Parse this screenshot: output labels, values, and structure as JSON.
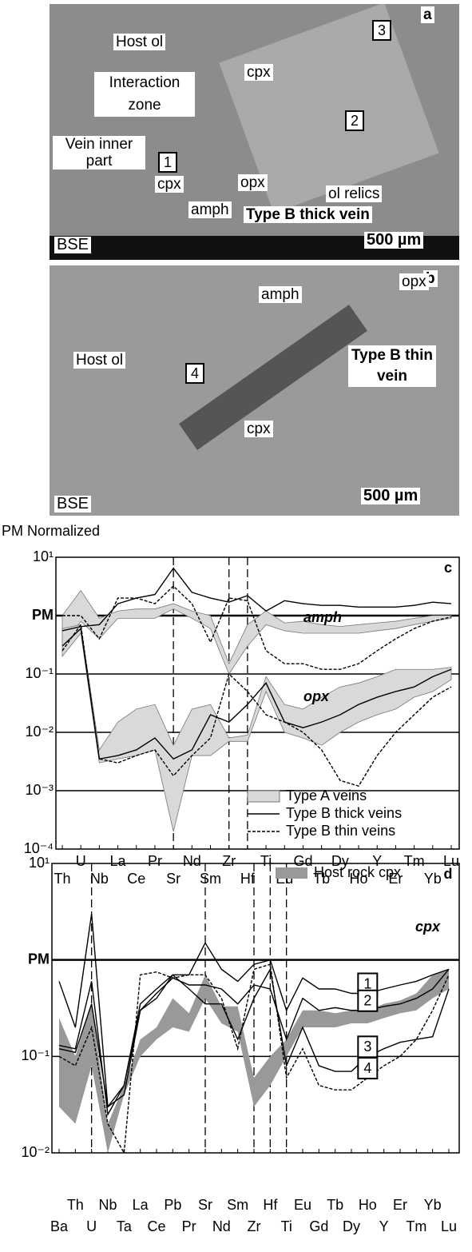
{
  "panel_a": {
    "letter": "a",
    "host": "Host ol",
    "zone": "Interaction zone",
    "cpx_top": "cpx",
    "vein_inner": "Vein inner part",
    "opx": "opx",
    "relics": "ol relics",
    "cpx_bottom": "cpx",
    "amph": "amph",
    "vein": "Type B thick vein",
    "bse": "BSE",
    "scale": "500 µm",
    "spots": [
      "1",
      "2",
      "3"
    ]
  },
  "panel_b": {
    "letter": "b",
    "amph": "amph",
    "opx": "opx",
    "host": "Host ol",
    "vein": "Type B thin vein",
    "spot": "4",
    "cpx": "cpx",
    "bse": "BSE",
    "scale": "500 µm"
  },
  "chart_data": [
    {
      "type": "line",
      "letter": "c",
      "ylabel": "PM Normalized",
      "log": true,
      "ylim": [
        0.0001,
        10
      ],
      "yticks": [
        {
          "value": 0.0001,
          "label": "10⁻⁴"
        },
        {
          "value": 0.001,
          "label": "10⁻³"
        },
        {
          "value": 0.01,
          "label": "10⁻²"
        },
        {
          "value": 0.1,
          "label": "10⁻¹"
        },
        {
          "value": 1,
          "label": "PM"
        },
        {
          "value": 10,
          "label": "10¹"
        }
      ],
      "categories": [
        "Th",
        "U",
        "Nb",
        "La",
        "Ce",
        "Pr",
        "Sr",
        "Nd",
        "Sm",
        "Zr",
        "Hf",
        "Ti",
        "Eu",
        "Gd",
        "Tb",
        "Dy",
        "Ho",
        "Y",
        "Er",
        "Tm",
        "Yb",
        "Lu"
      ],
      "vlines": [
        6,
        9,
        10
      ],
      "legend": "lower right",
      "annotations": [
        "amph",
        "opx"
      ],
      "series": [
        {
          "name": "Type A veins",
          "color": "#d9d9d9",
          "style": "band",
          "ranges": [
            {
              "low": [
                0.3,
                0.8,
                0.4,
                0.9,
                0.9,
                0.9,
                1.3,
                0.9,
                0.6,
                0.1,
                0.3,
                0.7,
                0.55,
                0.5,
                0.5,
                0.5,
                0.5,
                0.55,
                0.6,
                0.7,
                0.8,
                0.9
              ],
              "high": [
                1.0,
                2.7,
                0.9,
                1.2,
                1.3,
                1.3,
                1.6,
                1.2,
                1.0,
                0.15,
                0.7,
                1.2,
                0.75,
                0.8,
                0.7,
                0.65,
                0.7,
                0.75,
                0.8,
                0.9,
                1.0,
                1.0
              ]
            },
            {
              "low": [
                0.2,
                0.5,
                0.003,
                0.0035,
                0.004,
                0.005,
                0.0002,
                0.004,
                0.004,
                0.007,
                0.007,
                0.05,
                0.01,
                0.008,
                0.006,
                0.01,
                0.015,
                0.02,
                0.025,
                0.04,
                0.05,
                0.08
              ],
              "high": [
                0.6,
                0.7,
                0.005,
                0.015,
                0.025,
                0.03,
                0.006,
                0.025,
                0.03,
                0.008,
                0.009,
                0.09,
                0.03,
                0.025,
                0.04,
                0.06,
                0.07,
                0.09,
                0.12,
                0.12,
                0.12,
                0.13
              ]
            }
          ]
        },
        {
          "name": "Type B thick veins",
          "color": "#000",
          "style": "solid",
          "lines": [
            [
              0.55,
              0.65,
              0.7,
              1.6,
              2.0,
              2.3,
              6.5,
              2.5,
              2.0,
              1.7,
              2.2,
              1.2,
              1.8,
              1.6,
              1.5,
              1.5,
              1.4,
              1.4,
              1.4,
              1.5,
              1.7,
              1.6
            ],
            [
              0.3,
              0.6,
              0.0035,
              0.004,
              0.005,
              0.008,
              0.0035,
              0.005,
              0.02,
              0.015,
              0.03,
              0.07,
              0.015,
              0.012,
              0.015,
              0.02,
              0.03,
              0.04,
              0.05,
              0.06,
              0.09,
              0.12
            ]
          ]
        },
        {
          "name": "Type B thin veins",
          "color": "#000",
          "style": "dashed",
          "lines": [
            [
              1.0,
              1.0,
              0.4,
              2.0,
              2.0,
              1.6,
              3.2,
              1.6,
              0.35,
              2.0,
              1.8,
              0.25,
              0.15,
              0.15,
              0.12,
              0.12,
              0.15,
              0.25,
              0.4,
              0.6,
              0.8,
              0.95
            ],
            [
              0.25,
              0.7,
              0.0035,
              0.003,
              0.004,
              0.005,
              0.0018,
              0.004,
              0.008,
              0.1,
              0.05,
              0.02,
              0.015,
              0.01,
              0.005,
              0.0015,
              0.0012,
              0.004,
              0.01,
              0.02,
              0.04,
              0.06
            ]
          ]
        }
      ]
    },
    {
      "type": "line",
      "letter": "d",
      "log": true,
      "ylim": [
        0.01,
        10
      ],
      "yticks": [
        {
          "value": 0.01,
          "label": "10⁻²"
        },
        {
          "value": 0.1,
          "label": "10⁻¹"
        },
        {
          "value": 1,
          "label": "PM"
        },
        {
          "value": 10,
          "label": "10¹"
        }
      ],
      "categories": [
        "Ba",
        "Th",
        "U",
        "Nb",
        "Ta",
        "La",
        "Ce",
        "Pb",
        "Pr",
        "Sr",
        "Nd",
        "Sm",
        "Zr",
        "Hf",
        "Ti",
        "Eu",
        "Gd",
        "Tb",
        "Dy",
        "Ho",
        "Y",
        "Er",
        "Tm",
        "Yb",
        "Lu"
      ],
      "vlines": [
        2,
        9,
        12,
        13,
        14
      ],
      "legend": "upper right",
      "annotations": [
        "cpx"
      ],
      "series": [
        {
          "name": "Host rock cpx",
          "color": "#999",
          "style": "band",
          "ranges": [
            {
              "low": [
                0.03,
                0.02,
                0.08,
                0.01,
                0.04,
                0.1,
                0.15,
                0.2,
                0.18,
                0.4,
                0.22,
                0.18,
                0.03,
                0.05,
                0.1,
                0.2,
                0.2,
                0.2,
                0.22,
                0.22,
                0.25,
                0.28,
                0.3,
                0.4,
                0.5
              ],
              "high": [
                0.25,
                0.1,
                0.35,
                0.02,
                0.05,
                0.15,
                0.2,
                0.4,
                0.28,
                0.7,
                0.33,
                0.33,
                0.06,
                0.1,
                0.15,
                0.3,
                0.3,
                0.28,
                0.3,
                0.3,
                0.35,
                0.38,
                0.45,
                0.7,
                0.8
              ]
            }
          ]
        },
        {
          "tag": "1",
          "color": "#000",
          "style": "solid",
          "lines": [
            [
              0.6,
              0.2,
              3.0,
              0.03,
              0.05,
              0.35,
              0.5,
              0.7,
              0.7,
              1.5,
              0.8,
              0.6,
              0.9,
              1.0,
              0.3,
              0.65,
              0.5,
              0.5,
              0.45,
              0.45,
              0.5,
              0.55,
              0.6,
              0.7,
              0.8
            ]
          ]
        },
        {
          "tag": "2",
          "color": "#000",
          "style": "solid",
          "lines": [
            [
              0.13,
              0.12,
              0.6,
              0.025,
              0.05,
              0.3,
              0.45,
              0.65,
              0.55,
              0.55,
              0.5,
              0.35,
              0.55,
              0.5,
              0.15,
              0.4,
              0.3,
              0.32,
              0.3,
              0.3,
              0.33,
              0.35,
              0.4,
              0.5,
              0.8
            ]
          ]
        },
        {
          "tag": "3",
          "color": "#000",
          "style": "solid",
          "lines": [
            [
              0.12,
              0.11,
              0.35,
              0.03,
              0.04,
              0.3,
              0.4,
              0.7,
              0.5,
              0.35,
              0.35,
              0.15,
              0.4,
              0.8,
              0.08,
              0.2,
              0.08,
              0.07,
              0.07,
              0.1,
              0.12,
              0.14,
              0.15,
              0.16,
              0.5
            ]
          ]
        },
        {
          "tag": "4",
          "color": "#000",
          "style": "dashed",
          "lines": [
            [
              0.1,
              0.08,
              0.2,
              0.02,
              0.01,
              0.7,
              0.75,
              0.65,
              0.7,
              0.7,
              0.4,
              0.12,
              0.8,
              0.9,
              0.06,
              0.12,
              0.05,
              0.045,
              0.045,
              0.06,
              0.08,
              0.1,
              0.15,
              0.3,
              0.7
            ]
          ]
        }
      ]
    }
  ]
}
